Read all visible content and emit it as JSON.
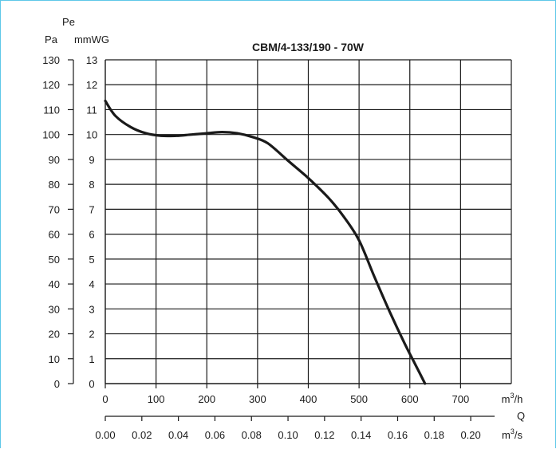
{
  "chart_data": {
    "type": "line",
    "title": "CBM/4-133/190 - 70W",
    "pressure_label": "Pe",
    "pa_unit": "Pa",
    "mmwg_unit": "mmWG",
    "flow_label": "Q",
    "m3h_unit": "m3/h",
    "m3s_unit": "m3/s",
    "y_pa_ticks": [
      "0",
      "10",
      "20",
      "30",
      "40",
      "50",
      "60",
      "70",
      "80",
      "90",
      "100",
      "110",
      "120",
      "130"
    ],
    "y_mmwg_ticks": [
      "0",
      "1",
      "2",
      "3",
      "4",
      "5",
      "6",
      "7",
      "8",
      "9",
      "10",
      "11",
      "12",
      "13"
    ],
    "x_m3h_ticks": [
      "0",
      "100",
      "200",
      "300",
      "400",
      "500",
      "600",
      "700"
    ],
    "x_m3s_ticks": [
      "0.00",
      "0.02",
      "0.04",
      "0.06",
      "0.08",
      "0.10",
      "0.12",
      "0.14",
      "0.16",
      "0.18",
      "0.20"
    ],
    "xlim_m3h": [
      0,
      800
    ],
    "ylim_pa": [
      0,
      130
    ],
    "grid": true,
    "series": [
      {
        "x": [
          0,
          20,
          50,
          80,
          110,
          140,
          170,
          200,
          230,
          260,
          290,
          320,
          360,
          400,
          440,
          470,
          500,
          530,
          560,
          590,
          610,
          630
        ],
        "y": [
          113.5,
          107.5,
          103,
          100.5,
          99.5,
          99.5,
          100,
          100.5,
          101,
          100.5,
          99,
          96.5,
          89.5,
          82.5,
          74.5,
          67,
          57.5,
          43,
          29,
          16,
          8,
          0
        ]
      }
    ]
  }
}
